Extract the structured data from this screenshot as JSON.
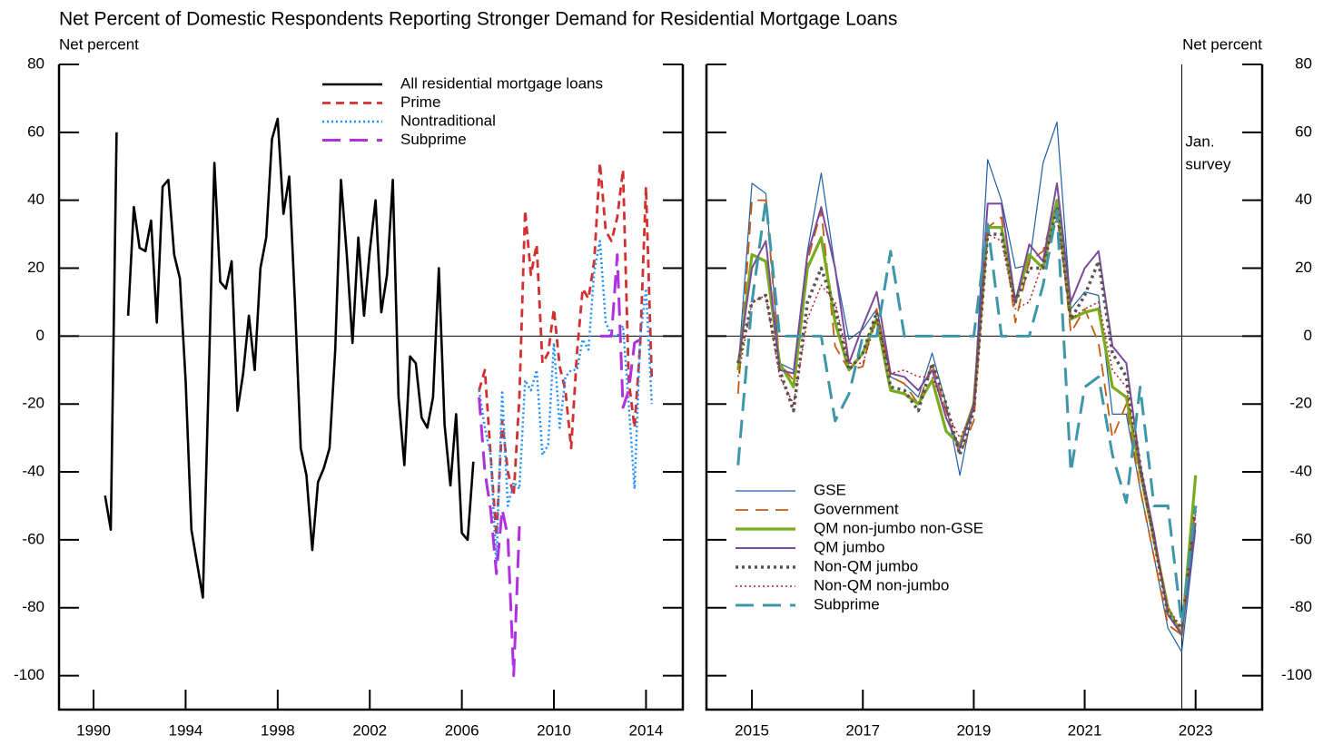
{
  "chart_data": [
    {
      "type": "line",
      "title": "Net Percent of Domestic Respondents Reporting Stronger Demand for Residential Mortgage Loans",
      "ylabel": "Net percent",
      "yaxis_side": "left",
      "legend": "upper center",
      "hline": 0,
      "xlim": [
        1988.5,
        2015.6
      ],
      "xticks": [
        1990,
        1994,
        1998,
        2002,
        2006,
        2010,
        2014
      ],
      "ylim": [
        -110,
        80
      ],
      "yticks": [
        80,
        60,
        40,
        20,
        0,
        -20,
        -40,
        -60,
        -80,
        -100
      ],
      "series": [
        {
          "name": "All residential mortgage loans",
          "color": "#000000",
          "style": "solid",
          "x": [
            1990.5,
            1990.75,
            1991,
            1991.25,
            1991.5,
            1991.75,
            1992,
            1992.25,
            1992.5,
            1992.75,
            1993,
            1993.25,
            1993.5,
            1993.75,
            1994,
            1994.25,
            1994.5,
            1994.75,
            1995,
            1995.25,
            1995.5,
            1995.75,
            1996,
            1996.25,
            1996.5,
            1996.75,
            1997,
            1997.25,
            1997.5,
            1997.75,
            1998,
            1998.25,
            1998.5,
            1998.75,
            1999,
            1999.25,
            1999.5,
            1999.75,
            2000,
            2000.25,
            2000.5,
            2000.75,
            2001,
            2001.25,
            2001.5,
            2001.75,
            2002,
            2002.25,
            2002.5,
            2002.75,
            2003,
            2003.25,
            2003.5,
            2003.75,
            2004,
            2004.25,
            2004.5,
            2004.75,
            2005,
            2005.25,
            2005.5,
            2005.75,
            2006,
            2006.25,
            2006.5
          ],
          "values": [
            -47,
            -57,
            60,
            null,
            6,
            38,
            26,
            25,
            34,
            4,
            44,
            46,
            24,
            17,
            -13,
            -57,
            -67,
            -77,
            -13,
            51,
            16,
            14,
            22,
            -22,
            -11,
            6,
            -10,
            20,
            29,
            58,
            64,
            36,
            47,
            10,
            -33,
            -41,
            -63,
            -43,
            -39,
            -33,
            -4,
            46,
            24,
            -2,
            29,
            6,
            25,
            40,
            7,
            18,
            46,
            -18,
            -38,
            -6,
            -8,
            -24,
            -27,
            -18,
            20,
            -26,
            -44,
            -23,
            -58,
            -60,
            -37
          ]
        },
        {
          "name": "Prime",
          "color": "#d03030",
          "style": "dashed",
          "x": [
            2006.75,
            2007,
            2007.25,
            2007.5,
            2007.75,
            2008,
            2008.25,
            2008.5,
            2008.75,
            2009,
            2009.25,
            2009.5,
            2009.75,
            2010,
            2010.25,
            2010.5,
            2010.75,
            2011,
            2011.25,
            2011.5,
            2011.75,
            2012,
            2012.25,
            2012.5,
            2012.75,
            2013,
            2013.25,
            2013.5,
            2013.75,
            2014,
            2014.25
          ],
          "values": [
            -16,
            -10,
            -35,
            -59,
            -25,
            -40,
            -47,
            -18,
            37,
            18,
            27,
            -8,
            -5,
            8,
            -9,
            -16,
            -33,
            -5,
            14,
            11,
            22,
            51,
            31,
            28,
            35,
            49,
            -13,
            -27,
            -2,
            44,
            -13
          ]
        },
        {
          "name": "Nontraditional",
          "color": "#1e90ff",
          "style": "dotted",
          "x": [
            2006.75,
            2007,
            2007.25,
            2007.5,
            2007.75,
            2008,
            2008.25,
            2008.5,
            2008.75,
            2009,
            2009.25,
            2009.5,
            2009.75,
            2010,
            2010.25,
            2010.5,
            2010.75,
            2011,
            2011.25,
            2011.5,
            2011.75,
            2012,
            2012.25,
            2012.5,
            2012.75,
            2013,
            2013.25,
            2013.5,
            2013.75,
            2014,
            2014.25
          ],
          "values": [
            -16,
            -27,
            -35,
            -67,
            -16,
            -50,
            -43,
            -45,
            -13,
            -16,
            -10,
            -35,
            -32,
            -2,
            -27,
            -12,
            -10,
            -10,
            -1,
            -4,
            19,
            28,
            4,
            0,
            0,
            3,
            -20,
            -45,
            0,
            14,
            -20
          ]
        },
        {
          "name": "Subprime",
          "color": "#b030e0",
          "style": "long-dashed",
          "x": [
            2006.75,
            2007,
            2007.25,
            2007.5,
            2007.75,
            2008,
            2008.25,
            2008.5,
            2008.75,
            2009,
            2009.25,
            2009.5,
            2009.75,
            2010,
            2010.25,
            2010.5,
            2010.75,
            2011,
            2011.25,
            2011.5,
            2011.75,
            2012,
            2012.25,
            2012.5,
            2012.75,
            2013,
            2013.25,
            2013.5,
            2013.75,
            2014,
            2014.25
          ],
          "values": [
            -18,
            -40,
            -51,
            -70,
            -51,
            -59,
            -100,
            -56,
            null,
            null,
            null,
            null,
            null,
            null,
            null,
            null,
            null,
            null,
            null,
            null,
            null,
            0,
            0,
            0,
            24,
            -21,
            -16,
            -2,
            -1,
            null,
            null
          ]
        }
      ]
    },
    {
      "type": "line",
      "ylabel": "Net percent",
      "yaxis_side": "right",
      "legend": "lower left",
      "hline": 0,
      "annotation": {
        "x": 2022.75,
        "lines": [
          "Jan.",
          "survey"
        ]
      },
      "xlim": [
        2014.18,
        2024.2
      ],
      "xticks": [
        2015,
        2017,
        2019,
        2021,
        2023
      ],
      "ylim": [
        -110,
        80
      ],
      "yticks": [
        80,
        60,
        40,
        20,
        0,
        -20,
        -40,
        -60,
        -80,
        -100
      ],
      "x": [
        2014.75,
        2015,
        2015.25,
        2015.5,
        2015.75,
        2016,
        2016.25,
        2016.5,
        2016.75,
        2017,
        2017.25,
        2017.5,
        2017.75,
        2018,
        2018.25,
        2018.5,
        2018.75,
        2019,
        2019.25,
        2019.5,
        2019.75,
        2020,
        2020.25,
        2020.5,
        2020.75,
        2021,
        2021.25,
        2021.5,
        2021.75,
        2022,
        2022.25,
        2022.5,
        2022.75,
        2023
      ],
      "series": [
        {
          "name": "GSE",
          "color": "#1f5fa6",
          "style": "thin",
          "values": [
            -10,
            45,
            42,
            -8,
            -10,
            25,
            48,
            20,
            -1,
            2,
            8,
            -12,
            -14,
            -18,
            -5,
            -20,
            -41,
            -20,
            52,
            40,
            20,
            21,
            51,
            63,
            8,
            13,
            12,
            -23,
            -23,
            -45,
            -65,
            -86,
            -93,
            -57
          ]
        },
        {
          "name": "Government",
          "color": "#c55a11",
          "style": "dashed-thin",
          "values": [
            -17,
            40,
            40,
            -8,
            -13,
            22,
            37,
            -3,
            -10,
            -9,
            8,
            -12,
            -14,
            -20,
            -8,
            -22,
            -35,
            -25,
            32,
            35,
            4,
            22,
            25,
            40,
            1,
            8,
            -2,
            -30,
            -20,
            -45,
            -65,
            -85,
            -88,
            -50
          ]
        },
        {
          "name": "QM non-jumbo non-GSE",
          "color": "#7aab1e",
          "style": "thick",
          "values": [
            -10,
            24,
            22,
            -8,
            -15,
            20,
            29,
            4,
            -10,
            -5,
            5,
            -16,
            -17,
            -20,
            -13,
            -28,
            -32,
            -20,
            32,
            32,
            10,
            24,
            20,
            40,
            5,
            7,
            8,
            -15,
            -18,
            -40,
            -60,
            -80,
            -88,
            -41
          ]
        },
        {
          "name": "QM jumbo",
          "color": "#7b4a9a",
          "style": "medium",
          "values": [
            -8,
            20,
            28,
            -10,
            -11,
            24,
            38,
            20,
            -8,
            3,
            13,
            -11,
            -12,
            -16,
            -10,
            -24,
            -33,
            -20,
            39,
            39,
            10,
            27,
            22,
            45,
            10,
            20,
            25,
            -3,
            -8,
            -38,
            -58,
            -82,
            -88,
            -55
          ]
        },
        {
          "name": "Non-QM jumbo",
          "color": "#555555",
          "style": "thick-dotted",
          "values": [
            -8,
            10,
            12,
            -10,
            -22,
            10,
            20,
            8,
            -10,
            -5,
            7,
            -15,
            -16,
            -22,
            -8,
            -20,
            -35,
            -22,
            30,
            30,
            10,
            20,
            20,
            38,
            5,
            12,
            22,
            -5,
            -12,
            -38,
            -60,
            -82,
            -86,
            -50
          ]
        },
        {
          "name": "Non-QM non-jumbo",
          "color": "#b22222",
          "style": "dotted-thin",
          "values": [
            -12,
            10,
            12,
            -12,
            -20,
            5,
            15,
            10,
            -8,
            -8,
            5,
            -11,
            -10,
            -12,
            -12,
            -22,
            -30,
            -22,
            30,
            28,
            8,
            10,
            22,
            35,
            5,
            8,
            10,
            -10,
            -15,
            -40,
            -60,
            -80,
            -86,
            -52
          ]
        },
        {
          "name": "Subprime",
          "color": "#3e97a8",
          "style": "long-dashed",
          "values": [
            -38,
            10,
            40,
            0,
            0,
            0,
            0,
            -25,
            -17,
            0,
            0,
            25,
            0,
            0,
            0,
            0,
            0,
            0,
            33,
            0,
            0,
            0,
            15,
            37,
            -40,
            -15,
            -12,
            -35,
            -49,
            -15,
            -50,
            -50,
            -85,
            -50
          ]
        }
      ]
    }
  ]
}
